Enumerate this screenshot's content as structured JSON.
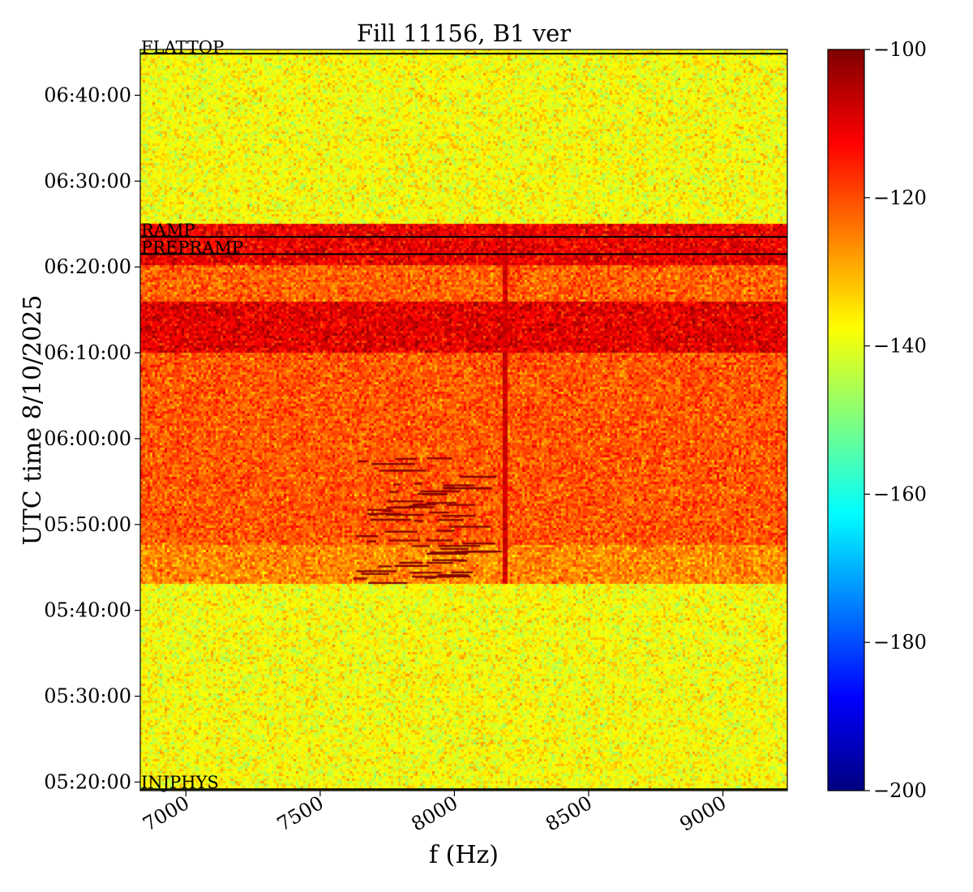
{
  "chart_data": {
    "type": "heatmap",
    "title": "Fill 11156, B1 ver",
    "xlabel": "f (Hz)",
    "ylabel": "UTC time 8/10/2025",
    "xlim": [
      6830,
      9240
    ],
    "ylim": [
      "05:19:00",
      "06:45:20"
    ],
    "x_ticks": [
      {
        "value": 7000,
        "label": "7000"
      },
      {
        "value": 7500,
        "label": "7500"
      },
      {
        "value": 8000,
        "label": "8000"
      },
      {
        "value": 8500,
        "label": "8500"
      },
      {
        "value": 9000,
        "label": "9000"
      }
    ],
    "y_ticks": [
      {
        "value": "05:20:00",
        "label": "05:20:00"
      },
      {
        "value": "05:30:00",
        "label": "05:30:00"
      },
      {
        "value": "05:40:00",
        "label": "05:40:00"
      },
      {
        "value": "05:50:00",
        "label": "05:50:00"
      },
      {
        "value": "06:00:00",
        "label": "06:00:00"
      },
      {
        "value": "06:10:00",
        "label": "06:10:00"
      },
      {
        "value": "06:20:00",
        "label": "06:20:00"
      },
      {
        "value": "06:30:00",
        "label": "06:30:00"
      },
      {
        "value": "06:40:00",
        "label": "06:40:00"
      }
    ],
    "colorbar": {
      "colormap": "jet",
      "range": [
        -200,
        -100
      ],
      "ticks": [
        {
          "value": -100,
          "label": "−100"
        },
        {
          "value": -120,
          "label": "−120"
        },
        {
          "value": -140,
          "label": "−140"
        },
        {
          "value": -160,
          "label": "−160"
        },
        {
          "value": -180,
          "label": "−180"
        },
        {
          "value": -200,
          "label": "−200"
        }
      ]
    },
    "level_bands": [
      {
        "from": "05:19:00",
        "to": "05:43:10",
        "level": -138
      },
      {
        "from": "05:43:10",
        "to": "05:47:30",
        "level": -126
      },
      {
        "from": "05:47:30",
        "to": "06:09:50",
        "level": -121
      },
      {
        "from": "06:09:50",
        "to": "06:16:00",
        "level": -110
      },
      {
        "from": "06:16:00",
        "to": "06:20:00",
        "level": -122
      },
      {
        "from": "06:20:00",
        "to": "06:24:50",
        "level": -111
      },
      {
        "from": "06:24:50",
        "to": "06:45:20",
        "level": -138
      }
    ],
    "spectral_line": {
      "f": 8190,
      "from": "05:43:10",
      "to": "06:24:50",
      "level": -108
    },
    "mode_markers": [
      {
        "label": "INJPHYS",
        "time": "05:19:10"
      },
      {
        "label": "PREPRAMP",
        "time": "06:21:30"
      },
      {
        "label": "RAMP",
        "time": "06:23:30"
      },
      {
        "label": "FLATTOP",
        "time": "06:44:50"
      }
    ],
    "grid": false,
    "legend": "none"
  }
}
